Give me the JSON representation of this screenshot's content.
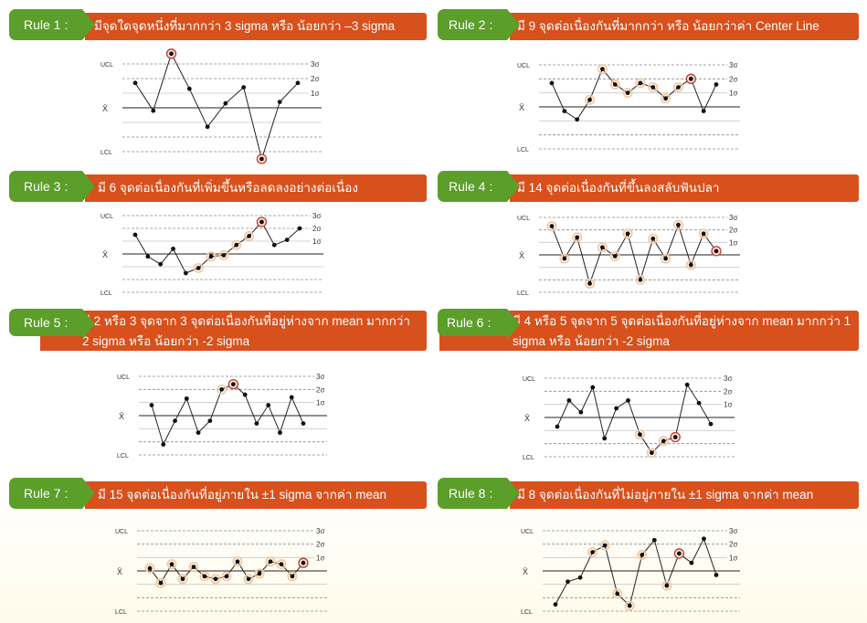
{
  "labels": {
    "ucl": "UCL",
    "lcl": "LCL",
    "mean": "X̄",
    "s3": "3σ",
    "s2": "2σ",
    "s1": "1σ"
  },
  "colors": {
    "tab": "#5b9e2a",
    "bar": "#d8501c",
    "highlight": "#c0392b",
    "halo": "#f5c9a3"
  },
  "rules": [
    {
      "label": "Rule 1",
      "sep": ":",
      "text": "มีจุดใดจุดหนึ่งที่มากกว่า 3 sigma หรือ น้อยกว่า –3 sigma",
      "points": [
        1.7,
        -0.2,
        3.7,
        1.3,
        -1.3,
        0.3,
        1.4,
        -3.5,
        0.4,
        1.7
      ],
      "marked": [
        2,
        7
      ],
      "haloed": []
    },
    {
      "label": "Rule 2",
      "sep": ":",
      "text": "มี 9 จุดต่อเนื่องกันที่มากกว่า หรือ น้อยกว่าค่า Center Line",
      "points": [
        1.7,
        -0.3,
        -0.9,
        0.5,
        2.7,
        1.6,
        1.0,
        1.7,
        1.4,
        0.6,
        1.4,
        2.0,
        -0.3,
        1.6
      ],
      "marked": [
        11
      ],
      "haloed": [
        3,
        4,
        5,
        6,
        7,
        8,
        9,
        10
      ]
    },
    {
      "label": "Rule 3",
      "sep": ":",
      "text": "มี 6 จุดต่อเนื่องกันที่เพิ่มขึ้นหรือลดลงอย่างต่อเนื่อง",
      "points": [
        1.5,
        -0.2,
        -0.8,
        0.4,
        -1.5,
        -1.1,
        -0.2,
        -0.1,
        0.7,
        1.4,
        2.5,
        0.7,
        1.1,
        2.0
      ],
      "marked": [
        10
      ],
      "haloed": [
        5,
        6,
        7,
        8,
        9
      ]
    },
    {
      "label": "Rule 4",
      "sep": ":",
      "text": "มี 14 จุดต่อเนื่องกันที่ขึ้นลงสลับฟันปลา",
      "points": [
        2.3,
        -0.3,
        1.4,
        -2.3,
        0.6,
        -0.1,
        1.7,
        -2.0,
        1.3,
        -0.3,
        2.4,
        -0.8,
        1.7,
        0.3
      ],
      "marked": [
        13
      ],
      "haloed": [
        0,
        1,
        2,
        3,
        4,
        5,
        6,
        7,
        8,
        9,
        10,
        11,
        12
      ]
    },
    {
      "label": "Rule 5",
      "sep": ":",
      "text": "มี 2 หรือ 3 จุดจาก 3 จุดต่อเนื่องกันที่อยู่ห่างจาก mean มากกว่า 2 sigma หรือ น้อยกว่า -2 sigma",
      "points": [
        0.8,
        -2.2,
        -0.4,
        1.3,
        -1.3,
        -0.4,
        2.0,
        2.4,
        1.6,
        -0.6,
        0.8,
        -1.3,
        1.4,
        -0.6
      ],
      "marked": [
        7
      ],
      "haloed": [
        6
      ]
    },
    {
      "label": "Rule 6",
      "sep": ":",
      "text": "มี 4 หรือ 5 จุดจาก 5 จุดต่อเนื่องกันที่อยู่ห่างจาก mean มากกว่า 1 sigma หรือ น้อยกว่า -2 sigma",
      "points": [
        -0.7,
        1.3,
        0.4,
        2.3,
        -1.6,
        0.7,
        1.3,
        -1.3,
        -2.7,
        -1.8,
        -1.5,
        2.5,
        1.1,
        -0.5
      ],
      "marked": [
        10
      ],
      "haloed": [
        7,
        8,
        9
      ]
    },
    {
      "label": "Rule 7",
      "sep": ":",
      "text": "มี 15 จุดต่อเนื่องกันที่อยู่ภายใน ±1 sigma จากค่า mean",
      "points": [
        0.2,
        -0.9,
        0.5,
        -0.6,
        0.3,
        -0.4,
        -0.6,
        -0.4,
        0.7,
        -0.6,
        -0.2,
        0.7,
        0.5,
        -0.4,
        0.6
      ],
      "marked": [
        14
      ],
      "haloed": [
        0,
        1,
        2,
        3,
        4,
        5,
        6,
        7,
        8,
        9,
        10,
        11,
        12,
        13
      ]
    },
    {
      "label": "Rule 8",
      "sep": ":",
      "text": "มี 8 จุดต่อเนื่องกันที่ไม่อยู่ภายใน ±1 sigma จากค่า mean",
      "points": [
        -2.5,
        -0.8,
        -0.5,
        1.4,
        1.9,
        -1.7,
        -2.6,
        1.2,
        2.3,
        -1.1,
        1.3,
        0.6,
        2.4,
        -0.3
      ],
      "marked": [
        10
      ],
      "haloed": [
        3,
        4,
        5,
        6,
        7,
        9
      ]
    }
  ]
}
